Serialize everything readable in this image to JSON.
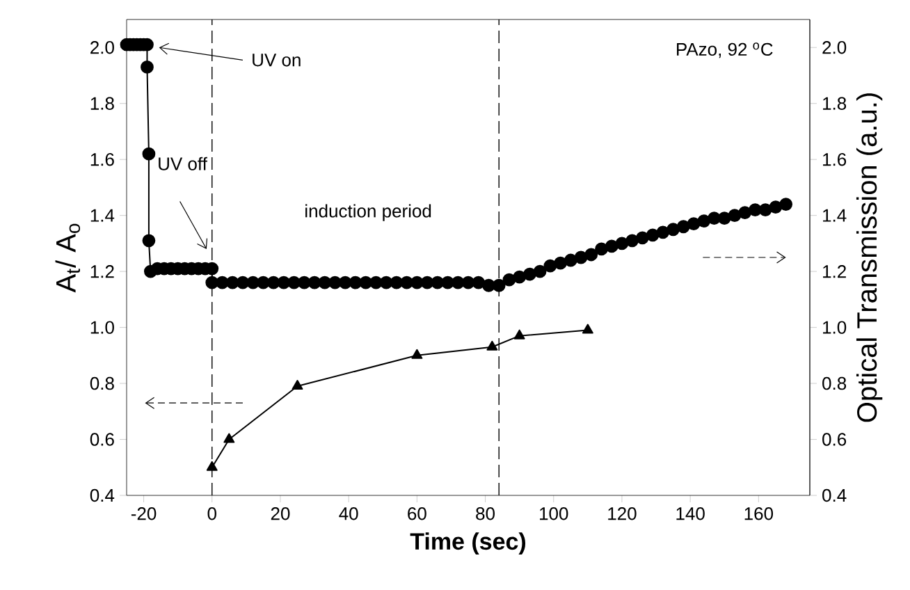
{
  "chart_data": {
    "type": "line",
    "xlabel": "Time (sec)",
    "ylabel": "A$_{t}$/ A$_{o}$",
    "y2label": "Optical Transmission (a.u.)",
    "annotations": [
      "UV on",
      "UV off",
      "induction period",
      "PAzo, 92 $^{o}$C"
    ],
    "xlim": [
      -25,
      175
    ],
    "xticks": [
      -20,
      0,
      20,
      40,
      60,
      80,
      100,
      120,
      140,
      160
    ],
    "ylim": [
      0.4,
      2.1
    ],
    "yticks": [
      0.4,
      0.6,
      0.8,
      {
        "value": 1.0,
        "label": "1.0"
      },
      1.2,
      1.4,
      1.6,
      1.8,
      {
        "value": 2.0,
        "label": "2.0"
      }
    ],
    "y2lim": [
      0.4,
      2.1
    ],
    "y2ticks": [
      0.4,
      0.6,
      0.8,
      {
        "value": 1.0,
        "label": "1.0"
      },
      1.2,
      1.4,
      1.6,
      1.8,
      {
        "value": 2.0,
        "label": "2.0"
      }
    ],
    "ref_lines": [
      {
        "axis": "x",
        "value": 0,
        "line_style": "dashed",
        "color": "#000000"
      },
      {
        "axis": "x",
        "value": 84,
        "line_style": "dashed",
        "color": "#000000"
      }
    ],
    "series": [
      {
        "color": "#000000",
        "marker": "triangle",
        "x": [
          0,
          5,
          25,
          60,
          82,
          90,
          110
        ],
        "values": [
          0.5,
          0.6,
          0.79,
          0.9,
          0.93,
          0.97,
          0.99
        ]
      },
      {
        "color": "#000000",
        "marker": "circle",
        "axis": "y2",
        "x": [
          -25,
          -24,
          -23,
          -22,
          -21,
          -20,
          -19,
          -19,
          -18.5,
          -18.5,
          -18,
          -16,
          -14,
          -12,
          -10,
          -8,
          -6,
          -4,
          -2,
          0,
          0,
          3,
          6,
          9,
          12,
          15,
          18,
          21,
          24,
          27,
          30,
          33,
          36,
          39,
          42,
          45,
          48,
          51,
          54,
          57,
          60,
          63,
          66,
          69,
          72,
          75,
          78,
          81,
          84,
          87,
          90,
          93,
          96,
          99,
          102,
          105,
          108,
          111,
          114,
          117,
          120,
          123,
          126,
          129,
          132,
          135,
          138,
          141,
          144,
          147,
          150,
          153,
          156,
          159,
          162,
          165,
          168
        ],
        "values": [
          2.01,
          2.01,
          2.01,
          2.01,
          2.01,
          2.01,
          2.01,
          1.93,
          1.62,
          1.31,
          1.2,
          1.21,
          1.21,
          1.21,
          1.21,
          1.21,
          1.21,
          1.21,
          1.21,
          1.21,
          1.16,
          1.16,
          1.16,
          1.16,
          1.16,
          1.16,
          1.16,
          1.16,
          1.16,
          1.16,
          1.16,
          1.16,
          1.16,
          1.16,
          1.16,
          1.16,
          1.16,
          1.16,
          1.16,
          1.16,
          1.16,
          1.16,
          1.16,
          1.16,
          1.16,
          1.16,
          1.16,
          1.15,
          1.15,
          1.17,
          1.18,
          1.19,
          1.2,
          1.22,
          1.23,
          1.24,
          1.25,
          1.26,
          1.28,
          1.29,
          1.3,
          1.31,
          1.32,
          1.33,
          1.34,
          1.35,
          1.36,
          1.37,
          1.38,
          1.39,
          1.39,
          1.4,
          1.41,
          1.42,
          1.42,
          1.43,
          1.44
        ]
      }
    ]
  }
}
